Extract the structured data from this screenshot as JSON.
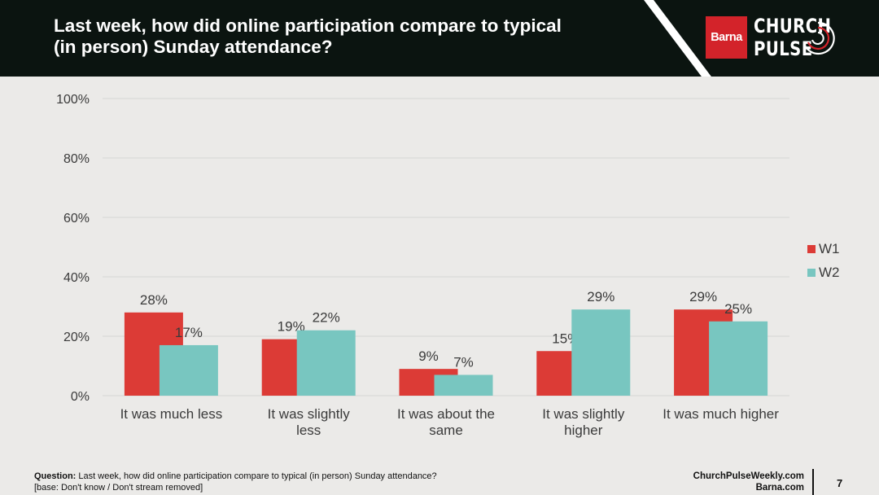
{
  "header": {
    "title": "Last week, how did online participation compare to typical (in person) Sunday attendance?",
    "logo_barna": "Barna",
    "logo_line1": "CHURCH",
    "logo_line2": "PULSE"
  },
  "colors": {
    "w1": "#dc3b36",
    "w2": "#78c6c0",
    "grid": "#d6d6d4",
    "text": "#3a3a3a"
  },
  "chart_data": {
    "type": "bar",
    "categories": [
      "It was much less",
      "It was slightly less",
      "It was about the same",
      "It was slightly higher",
      "It was much higher"
    ],
    "series": [
      {
        "name": "W1",
        "values": [
          28,
          19,
          9,
          15,
          29
        ]
      },
      {
        "name": "W2",
        "values": [
          17,
          22,
          7,
          29,
          25
        ]
      }
    ],
    "data_labels": [
      [
        "28%",
        "19%",
        "9%",
        "15%",
        "29%"
      ],
      [
        "17%",
        "22%",
        "7%",
        "29%",
        "25%"
      ]
    ],
    "ylim": [
      0,
      100
    ],
    "yticks": [
      0,
      20,
      40,
      60,
      80,
      100
    ],
    "ytick_labels": [
      "0%",
      "20%",
      "40%",
      "60%",
      "80%",
      "100%"
    ],
    "grid": true,
    "legend": "right"
  },
  "footer": {
    "question_label": "Question:",
    "question_text": "Last week, how did online participation compare to typical (in person) Sunday attendance?",
    "base_note": "[base: Don't know / Don't stream removed]",
    "link1": "ChurchPulseWeekly.com",
    "link2": "Barna.com",
    "page_number": "7"
  }
}
